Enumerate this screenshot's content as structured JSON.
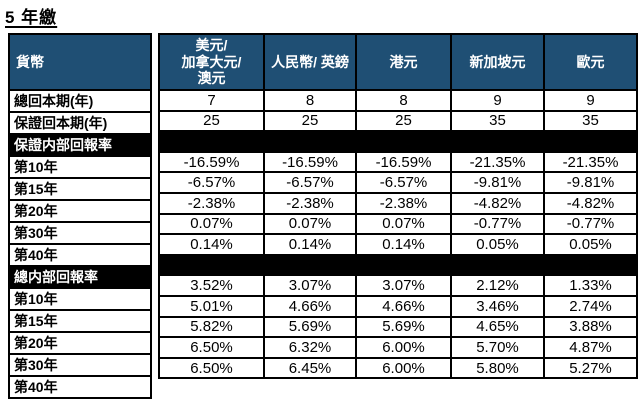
{
  "title": "5 年繳",
  "colors": {
    "header_bg": "#1F4F74",
    "header_text": "#FFFFFF",
    "section_bg": "#000000",
    "border": "#000000"
  },
  "table": {
    "corner_label": "貨幣",
    "currency_columns": [
      "美元/\n加拿大元/\n澳元",
      "人民幣/ 英鎊",
      "港元",
      "新加坡元",
      "歐元"
    ],
    "rows": [
      {
        "type": "data",
        "label": "總回本期(年)",
        "values": [
          "7",
          "8",
          "8",
          "9",
          "9"
        ]
      },
      {
        "type": "data",
        "label": "保證回本期(年)",
        "values": [
          "25",
          "25",
          "25",
          "35",
          "35"
        ]
      },
      {
        "type": "section",
        "label": "保證内部回報率",
        "values": [
          "",
          "",
          "",
          "",
          ""
        ]
      },
      {
        "type": "data",
        "label": "第10年",
        "values": [
          "-16.59%",
          "-16.59%",
          "-16.59%",
          "-21.35%",
          "-21.35%"
        ]
      },
      {
        "type": "data",
        "label": "第15年",
        "values": [
          "-6.57%",
          "-6.57%",
          "-6.57%",
          "-9.81%",
          "-9.81%"
        ]
      },
      {
        "type": "data",
        "label": "第20年",
        "values": [
          "-2.38%",
          "-2.38%",
          "-2.38%",
          "-4.82%",
          "-4.82%"
        ]
      },
      {
        "type": "data",
        "label": "第30年",
        "values": [
          "0.07%",
          "0.07%",
          "0.07%",
          "-0.77%",
          "-0.77%"
        ]
      },
      {
        "type": "data",
        "label": "第40年",
        "values": [
          "0.14%",
          "0.14%",
          "0.14%",
          "0.05%",
          "0.05%"
        ]
      },
      {
        "type": "section",
        "label": "總内部回報率",
        "values": [
          "",
          "",
          "",
          "",
          ""
        ]
      },
      {
        "type": "data",
        "label": "第10年",
        "values": [
          "3.52%",
          "3.07%",
          "3.07%",
          "2.12%",
          "1.33%"
        ]
      },
      {
        "type": "data",
        "label": "第15年",
        "values": [
          "5.01%",
          "4.66%",
          "4.66%",
          "3.46%",
          "2.74%"
        ]
      },
      {
        "type": "data",
        "label": "第20年",
        "values": [
          "5.82%",
          "5.69%",
          "5.69%",
          "4.65%",
          "3.88%"
        ]
      },
      {
        "type": "data",
        "label": "第30年",
        "values": [
          "6.50%",
          "6.32%",
          "6.00%",
          "5.70%",
          "4.87%"
        ]
      },
      {
        "type": "data",
        "label": "第40年",
        "values": [
          "6.50%",
          "6.45%",
          "6.00%",
          "5.80%",
          "5.27%"
        ]
      }
    ]
  }
}
